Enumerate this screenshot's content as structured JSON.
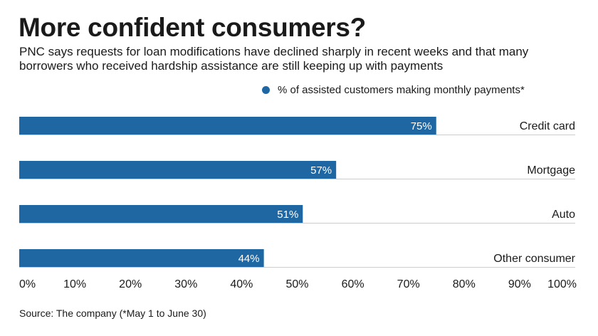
{
  "title": "More confident consumers?",
  "subtitle": "PNC says requests for loan modifications have declined sharply in recent weeks and that many borrowers who received hardship assistance are still keeping up with payments",
  "source": "Source: The company (*May 1 to June 30)",
  "colors": {
    "bar": "#1f67a3",
    "text": "#1a1a1a",
    "bar_label": "#ffffff",
    "rule": "#cccccc"
  },
  "chart_data": {
    "type": "bar",
    "orientation": "horizontal",
    "categories": [
      "Credit card",
      "Mortgage",
      "Auto",
      "Other consumer"
    ],
    "series": [
      {
        "name": "% of assisted customers making monthly payments*",
        "values": [
          75,
          57,
          51,
          44
        ]
      }
    ],
    "value_labels": [
      "75%",
      "57%",
      "51%",
      "44%"
    ],
    "xlim": [
      0,
      100
    ],
    "xticks": [
      0,
      10,
      20,
      30,
      40,
      50,
      60,
      70,
      80,
      90,
      100
    ],
    "xtick_labels": [
      "0%",
      "10%",
      "20%",
      "30%",
      "40%",
      "50%",
      "60%",
      "70%",
      "80%",
      "90%",
      "100%"
    ],
    "legend": "top-right",
    "grid": false
  }
}
